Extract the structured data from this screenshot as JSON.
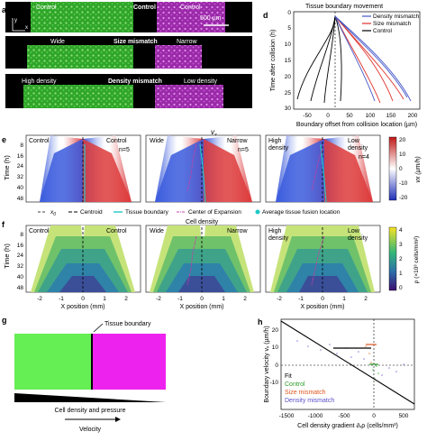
{
  "figure": {
    "panels_abc": {
      "a": {
        "letter": "a",
        "left_label": "Control",
        "center_label": "Control",
        "right_label": "Control",
        "scale_bar": "500 µm",
        "axis_x": "x",
        "axis_y": "y"
      },
      "b": {
        "letter": "b",
        "left_label": "Wide",
        "center_label": "Size mismatch",
        "right_label": "Narrow"
      },
      "c": {
        "letter": "c",
        "left_label": "High density",
        "center_label": "Density mismatch",
        "right_label": "Low density"
      },
      "colors": {
        "green": "#3fbf3a",
        "magenta": "#c23bd1",
        "black": "#000000"
      }
    },
    "panel_d": {
      "letter": "d",
      "title": "Tissue boundary movement",
      "xlabel": "Boundary offset from collision location (µm)",
      "ylabel": "Time after collision (h)",
      "x_ticks": [
        "-50",
        "0",
        "50",
        "100",
        "150",
        "200"
      ],
      "y_ticks": [
        "0",
        "5",
        "10",
        "15",
        "20",
        "25",
        "30"
      ],
      "legend": [
        "Density mismatch",
        "Size mismatch",
        "Control"
      ],
      "legend_colors": [
        "#4457c9",
        "#e0302a",
        "#000000"
      ]
    },
    "panel_e": {
      "letter": "e",
      "top_label": "v",
      "top_label_sub": "x",
      "ylabel": "Time (h)",
      "y_ticks": [
        "8",
        "16",
        "24",
        "32",
        "40",
        "48"
      ],
      "heatmaps": [
        {
          "left": "Control",
          "right": "Control",
          "n": "n=5"
        },
        {
          "left": "Wide",
          "right": "Narrow",
          "n": "n=5"
        },
        {
          "left": "High\ndensity",
          "right": "Low\ndensity",
          "n": "n=4"
        }
      ],
      "colorbar_ticks": [
        "20",
        "10",
        "0",
        "-10",
        "-20"
      ],
      "colorbar_label": "vx (µm/h)",
      "legend": {
        "x0": "x",
        "x0_sub": "0",
        "centroid": "Centroid",
        "tissue_boundary": "Tissue boundary",
        "center_expansion": "Center of Expansion",
        "fusion": "Average tissue fusion location"
      }
    },
    "panel_f": {
      "letter": "f",
      "top_label": "Cell density",
      "ylabel": "Time (h)",
      "xlabel": "X position (mm)",
      "y_ticks": [
        "8",
        "16",
        "24",
        "32",
        "40",
        "48"
      ],
      "x_ticks": [
        "-2",
        "-1",
        "0",
        "1",
        "2"
      ],
      "heatmaps": [
        {
          "left": "Control",
          "right": "Control"
        },
        {
          "left": "Wide",
          "right": "Narrow"
        },
        {
          "left": "High\ndensity",
          "right": "Low\ndensity"
        }
      ],
      "colorbar_ticks": [
        "4",
        "3",
        "2",
        "1",
        "0"
      ],
      "colorbar_label": "ρ (×10³ cells/mm²)"
    },
    "panel_g": {
      "letter": "g",
      "boundary_label": "Tissue boundary",
      "density_label": "Cell density and pressure",
      "velocity_label": "Velocity",
      "left_color": "#66ee55",
      "right_color": "#ee22ee"
    },
    "panel_h": {
      "letter": "h",
      "xlabel": "Cell density gradient ∂ₓρ (cells/mm³)",
      "ylabel": "Boundary velocity vₓ (µm/h)",
      "x_ticks": [
        "-1500",
        "-1000",
        "-500",
        "0",
        "500"
      ],
      "y_ticks": [
        "20",
        "10",
        "0",
        "-10"
      ],
      "legend": [
        "Fit",
        "Control",
        "Size mismatch",
        "Density mismatch"
      ],
      "legend_colors": [
        "#000000",
        "#2a9d2a",
        "#e0551f",
        "#5a4fc9"
      ]
    }
  }
}
